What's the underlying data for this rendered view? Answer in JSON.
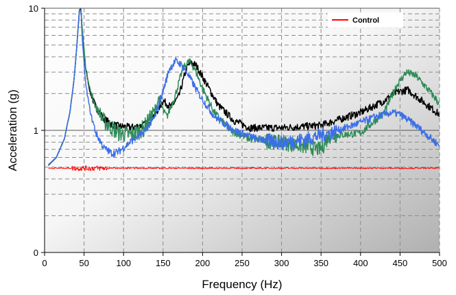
{
  "chart_data": {
    "type": "line",
    "title": "",
    "xlabel": "Frequency (Hz)",
    "ylabel": "Acceleration (g)",
    "x_scale": "linear",
    "y_scale": "log",
    "xlim": [
      0,
      500
    ],
    "ylim": [
      0.1,
      10
    ],
    "x_ticks": [
      0,
      50,
      100,
      150,
      200,
      250,
      300,
      350,
      400,
      450,
      500
    ],
    "y_ticks": [
      {
        "value": 0.1,
        "label": "0"
      },
      {
        "value": 1,
        "label": "1"
      },
      {
        "value": 10,
        "label": "10"
      }
    ],
    "grid": true,
    "legend": {
      "placement": "top-right",
      "entries": [
        "Control"
      ]
    },
    "series": [
      {
        "name": "Control",
        "color": "#ff0000",
        "x": [
          5,
          30,
          40,
          50,
          60,
          70,
          100,
          150,
          200,
          250,
          300,
          350,
          400,
          450,
          500
        ],
        "y": [
          0.49,
          0.49,
          0.49,
          0.49,
          0.49,
          0.49,
          0.49,
          0.49,
          0.49,
          0.49,
          0.49,
          0.49,
          0.49,
          0.49,
          0.49
        ]
      },
      {
        "color": "#000000",
        "x": [
          5,
          15,
          25,
          32,
          37,
          41,
          44,
          46,
          48,
          52,
          58,
          65,
          75,
          85,
          95,
          110,
          125,
          140,
          150,
          160,
          170,
          180,
          186,
          192,
          205,
          220,
          240,
          260,
          300,
          350,
          400,
          430,
          445,
          460,
          480,
          500
        ],
        "y": [
          0.52,
          0.6,
          0.85,
          1.4,
          2.5,
          5.0,
          9.5,
          9.8,
          6.0,
          3.2,
          2.0,
          1.55,
          1.25,
          1.12,
          1.08,
          1.06,
          1.1,
          1.35,
          1.75,
          1.55,
          1.9,
          3.3,
          3.6,
          3.4,
          2.4,
          1.6,
          1.2,
          1.05,
          1.05,
          1.1,
          1.4,
          1.75,
          2.05,
          2.15,
          1.7,
          1.35
        ]
      },
      {
        "color": "#2e8b57",
        "x": [
          5,
          15,
          25,
          32,
          37,
          41,
          44,
          46,
          48,
          52,
          58,
          65,
          75,
          85,
          95,
          110,
          125,
          140,
          145,
          150,
          155,
          165,
          175,
          183,
          190,
          200,
          215,
          235,
          260,
          300,
          350,
          360,
          400,
          430,
          445,
          458,
          470,
          490,
          500
        ],
        "y": [
          0.52,
          0.6,
          0.85,
          1.4,
          2.5,
          5.0,
          9.5,
          9.8,
          6.5,
          3.3,
          2.1,
          1.55,
          1.2,
          1.05,
          0.95,
          0.92,
          1.05,
          1.45,
          1.9,
          1.45,
          1.3,
          1.9,
          3.2,
          3.7,
          3.2,
          2.2,
          1.4,
          1.0,
          0.85,
          0.8,
          0.7,
          0.9,
          0.95,
          1.4,
          2.3,
          3.0,
          2.8,
          2.0,
          1.65
        ]
      },
      {
        "color": "#3b6fe8",
        "x": [
          5,
          15,
          25,
          32,
          37,
          41,
          44,
          46,
          48,
          52,
          58,
          65,
          75,
          85,
          92,
          100,
          110,
          125,
          140,
          150,
          158,
          166,
          172,
          180,
          195,
          215,
          240,
          270,
          300,
          330,
          360,
          390,
          420,
          440,
          450,
          470,
          490,
          500
        ],
        "y": [
          0.52,
          0.6,
          0.85,
          1.4,
          2.5,
          5.0,
          9.5,
          9.8,
          5.2,
          2.4,
          1.4,
          0.95,
          0.72,
          0.65,
          0.66,
          0.72,
          0.82,
          0.95,
          1.3,
          2.1,
          3.2,
          3.7,
          3.5,
          3.0,
          2.0,
          1.3,
          1.0,
          0.85,
          0.8,
          0.85,
          0.95,
          1.1,
          1.3,
          1.4,
          1.35,
          1.1,
          0.85,
          0.75
        ]
      }
    ]
  }
}
